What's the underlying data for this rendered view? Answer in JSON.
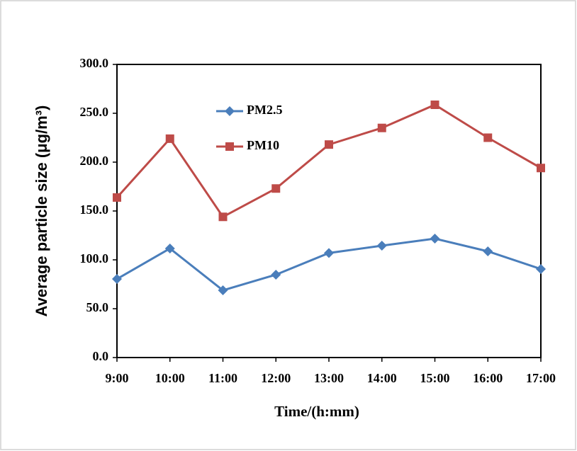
{
  "chart_data": {
    "type": "line",
    "x_label": "Time/(h:mm)",
    "y_label": "Average particle size (μg/m³)",
    "categories": [
      "9:00",
      "10:00",
      "11:00",
      "12:00",
      "13:00",
      "14:00",
      "15:00",
      "16:00",
      "17:00"
    ],
    "series": [
      {
        "name": "PM2.5",
        "color": "#4a7ebb",
        "marker": "diamond",
        "values": [
          80.4,
          111.6,
          68.8,
          84.8,
          107,
          114.5,
          121.7,
          108.7,
          90.6
        ]
      },
      {
        "name": "PM10",
        "color": "#be4b48",
        "marker": "square",
        "values": [
          163.8,
          224,
          144,
          173,
          218,
          235,
          258.7,
          225,
          194
        ]
      }
    ],
    "ylim": [
      0,
      300
    ],
    "yticks": [
      {
        "value": 0,
        "label": "0.0"
      },
      {
        "value": 50,
        "label": "50.0"
      },
      {
        "value": 100,
        "label": "100.0"
      },
      {
        "value": 150,
        "label": "150.0"
      },
      {
        "value": 200,
        "label": "200.0"
      },
      {
        "value": 250,
        "label": "250.0"
      },
      {
        "value": 300,
        "label": "300.0"
      }
    ],
    "grid": false
  }
}
